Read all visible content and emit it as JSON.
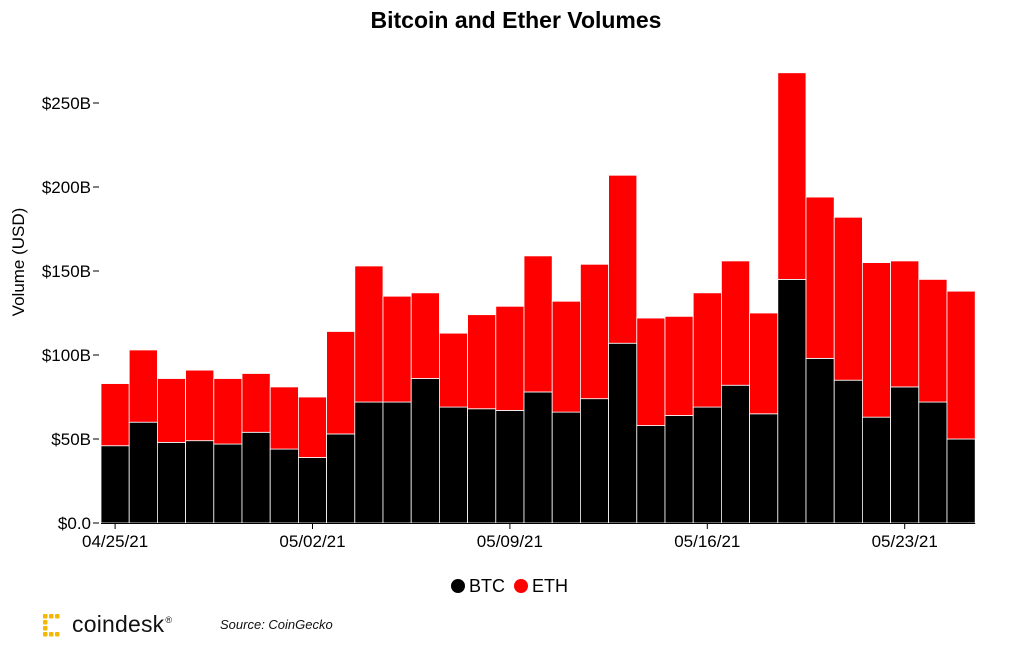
{
  "chart_data": {
    "type": "bar",
    "stacked": true,
    "title": "Bitcoin and Ether Volumes",
    "ylabel": "Volume (USD)",
    "xlabel": "",
    "ylim": [
      0,
      270
    ],
    "y_ticks": [
      0,
      50,
      100,
      150,
      200,
      250
    ],
    "y_tick_labels": [
      "$0.0",
      "$50B",
      "$100B",
      "$150B",
      "$200B",
      "$250B"
    ],
    "x_tick_labels": [
      {
        "index": 0,
        "label": "04/25/21"
      },
      {
        "index": 7,
        "label": "05/02/21"
      },
      {
        "index": 14,
        "label": "05/09/21"
      },
      {
        "index": 21,
        "label": "05/16/21"
      },
      {
        "index": 28,
        "label": "05/23/21"
      }
    ],
    "categories": [
      "04/25/21",
      "04/26/21",
      "04/27/21",
      "04/28/21",
      "04/29/21",
      "04/30/21",
      "05/01/21",
      "05/02/21",
      "05/03/21",
      "05/04/21",
      "05/05/21",
      "05/06/21",
      "05/07/21",
      "05/08/21",
      "05/09/21",
      "05/10/21",
      "05/11/21",
      "05/12/21",
      "05/13/21",
      "05/14/21",
      "05/15/21",
      "05/16/21",
      "05/17/21",
      "05/18/21",
      "05/19/21",
      "05/20/21",
      "05/21/21",
      "05/22/21",
      "05/23/21",
      "05/24/21",
      "05/25/21"
    ],
    "series": [
      {
        "name": "BTC",
        "color": "#000000",
        "values": [
          46,
          60,
          48,
          49,
          47,
          54,
          44,
          39,
          53,
          72,
          72,
          86,
          69,
          68,
          67,
          78,
          66,
          74,
          107,
          58,
          64,
          69,
          82,
          65,
          145,
          98,
          85,
          63,
          81,
          72,
          50
        ]
      },
      {
        "name": "ETH",
        "color": "#ff0000",
        "values": [
          37,
          43,
          38,
          42,
          39,
          35,
          37,
          36,
          61,
          81,
          63,
          51,
          44,
          56,
          62,
          81,
          66,
          80,
          100,
          64,
          59,
          68,
          74,
          60,
          123,
          96,
          97,
          92,
          75,
          73,
          88
        ]
      }
    ],
    "legend": {
      "position": "bottom-center",
      "entries": [
        "BTC",
        "ETH"
      ]
    },
    "grid": false
  },
  "footer": {
    "brand": "coindesk",
    "registered": "®",
    "source": "Source: CoinGecko"
  },
  "colors": {
    "brand_gold": "#f5b800"
  }
}
